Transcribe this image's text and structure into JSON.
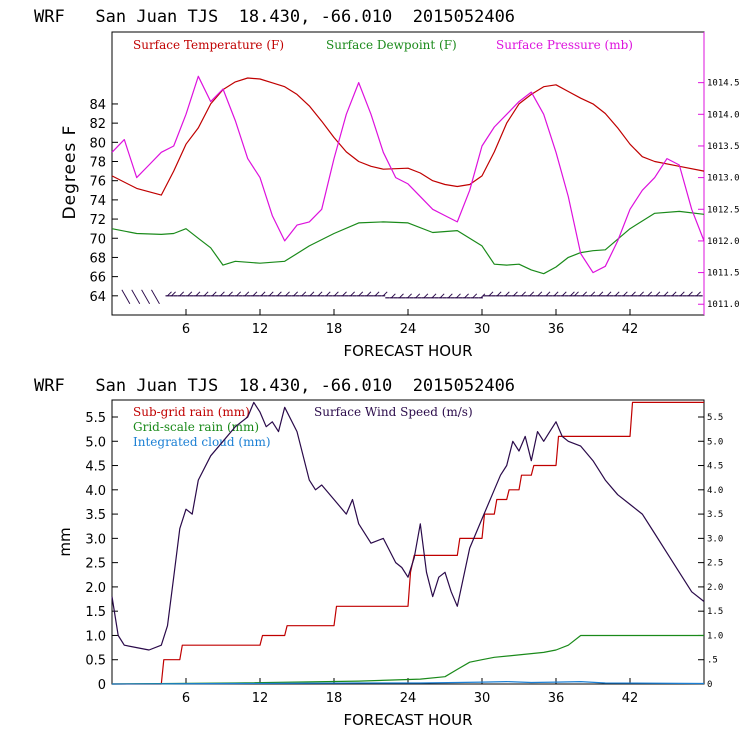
{
  "chart_data": [
    {
      "type": "line",
      "title": "WRF   San Juan TJS  18.430, -66.010  2015052406",
      "xlabel": "FORECAST HOUR",
      "ylabel": "Degrees F",
      "xlim": [
        0,
        48
      ],
      "ylim": [
        62,
        91.5
      ],
      "y2lim": [
        1010.83,
        1015.3
      ],
      "xticks": [
        6,
        12,
        18,
        24,
        30,
        36,
        42
      ],
      "yticks": [
        64,
        66,
        68,
        70,
        72,
        74,
        76,
        78,
        80,
        82,
        84
      ],
      "y2ticks": [
        "1011.0",
        "1011.5",
        "1012.0",
        "1012.5",
        "1013.0",
        "1013.5",
        "1014.0",
        "1014.5"
      ],
      "legend_position": "top",
      "series": [
        {
          "name": "Surface Temperature (F)",
          "color": "#c00000",
          "axis": "left",
          "x": [
            0,
            2,
            4,
            5,
            6,
            7,
            8,
            9,
            10,
            11,
            12,
            13,
            14,
            15,
            16,
            17,
            18,
            19,
            20,
            21,
            22,
            24,
            25,
            26,
            27,
            28,
            29,
            30,
            31,
            32,
            33,
            34,
            35,
            36,
            37,
            38,
            39,
            40,
            41,
            42,
            43,
            44,
            46,
            48
          ],
          "y": [
            76.5,
            75.2,
            74.5,
            77,
            79.8,
            81.5,
            84,
            85.5,
            86.3,
            86.7,
            86.6,
            86.2,
            85.8,
            85,
            83.8,
            82.2,
            80.5,
            79,
            78,
            77.5,
            77.2,
            77.3,
            76.8,
            76,
            75.6,
            75.4,
            75.6,
            76.5,
            79,
            82,
            84,
            85,
            85.8,
            86,
            85.3,
            84.6,
            84,
            83,
            81.5,
            79.8,
            78.5,
            78,
            77.5,
            77
          ]
        },
        {
          "name": "Surface Dewpoint (F)",
          "color": "#1a8a1a",
          "axis": "left",
          "x": [
            0,
            2,
            4,
            5,
            6,
            7,
            8,
            9,
            10,
            12,
            14,
            16,
            18,
            20,
            22,
            24,
            26,
            28,
            30,
            31,
            32,
            33,
            34,
            35,
            36,
            37,
            38,
            39,
            40,
            42,
            44,
            46,
            48
          ],
          "y": [
            71,
            70.5,
            70.4,
            70.5,
            71,
            70,
            69,
            67.2,
            67.6,
            67.4,
            67.6,
            69.2,
            70.5,
            71.6,
            71.7,
            71.6,
            70.6,
            70.8,
            69.2,
            67.3,
            67.2,
            67.3,
            66.7,
            66.3,
            67,
            68,
            68.5,
            68.7,
            68.8,
            71,
            72.6,
            72.8,
            72.5
          ]
        },
        {
          "name": "Surface Pressure (mb)",
          "color": "#dd11dd",
          "axis": "right",
          "x": [
            0,
            1,
            2,
            3,
            4,
            5,
            6,
            7,
            8,
            9,
            10,
            11,
            12,
            13,
            14,
            15,
            16,
            17,
            18,
            19,
            20,
            21,
            22,
            23,
            24,
            25,
            26,
            27,
            28,
            29,
            30,
            31,
            32,
            33,
            34,
            35,
            36,
            37,
            38,
            39,
            40,
            41,
            42,
            43,
            44,
            45,
            46,
            47,
            48
          ],
          "y": [
            1013.4,
            1013.6,
            1013.0,
            1013.2,
            1013.4,
            1013.5,
            1014.0,
            1014.6,
            1014.2,
            1014.4,
            1013.9,
            1013.3,
            1013.0,
            1012.4,
            1012.0,
            1012.25,
            1012.3,
            1012.5,
            1013.3,
            1014.0,
            1014.5,
            1014.0,
            1013.4,
            1013.0,
            1012.9,
            1012.7,
            1012.5,
            1012.4,
            1012.3,
            1012.8,
            1013.5,
            1013.8,
            1014.0,
            1014.2,
            1014.35,
            1014.0,
            1013.4,
            1012.7,
            1011.8,
            1011.5,
            1011.6,
            1012.0,
            1012.5,
            1012.8,
            1013.0,
            1013.3,
            1013.2,
            1012.5,
            1012.0
          ]
        }
      ],
      "wind_barb_row": {
        "y": 64,
        "description": "surface wind barbs along the bottom"
      }
    },
    {
      "type": "line",
      "title": "WRF   San Juan TJS  18.430, -66.010  2015052406",
      "xlabel": "FORECAST HOUR",
      "ylabel": "mm",
      "xlim": [
        0,
        48
      ],
      "ylim": [
        0,
        5.85
      ],
      "y2lim": [
        0,
        5.85
      ],
      "xticks": [
        6,
        12,
        18,
        24,
        30,
        36,
        42
      ],
      "yticks": [
        "0",
        "0.5",
        "1.0",
        "1.5",
        "2.0",
        "2.5",
        "3.0",
        "3.5",
        "4.0",
        "4.5",
        "5.0",
        "5.5"
      ],
      "y2ticks": [
        "0",
        ".5",
        "1.0",
        "1.5",
        "2.0",
        "2.5",
        "3.0",
        "3.5",
        "4.0",
        "4.5",
        "5.0",
        "5.5"
      ],
      "legend_position": "top-left",
      "series": [
        {
          "name": "Sub-grid rain (mm)",
          "color": "#c00000",
          "axis": "left",
          "x": [
            0,
            4,
            4.2,
            5.5,
            5.7,
            12,
            12.2,
            14,
            14.2,
            18,
            18.2,
            24,
            24.2,
            24.5,
            28,
            28.2,
            30,
            30.2,
            31,
            31.2,
            32,
            32.2,
            33,
            33.2,
            34,
            34.2,
            36,
            36.2,
            42,
            42.2,
            48
          ],
          "y": [
            0,
            0,
            0.5,
            0.5,
            0.8,
            0.8,
            1.0,
            1.0,
            1.2,
            1.2,
            1.6,
            1.6,
            2.3,
            2.65,
            2.65,
            3.0,
            3.0,
            3.5,
            3.5,
            3.8,
            3.8,
            4.0,
            4.0,
            4.3,
            4.3,
            4.5,
            4.5,
            5.1,
            5.1,
            5.8,
            5.8
          ]
        },
        {
          "name": "Grid-scale rain (mm)",
          "color": "#1a8a1a",
          "axis": "left",
          "x": [
            0,
            10,
            20,
            25,
            27,
            28,
            29,
            30,
            31,
            33,
            35,
            36,
            37,
            38,
            40,
            48
          ],
          "y": [
            0,
            0.02,
            0.06,
            0.1,
            0.15,
            0.3,
            0.45,
            0.5,
            0.55,
            0.6,
            0.65,
            0.7,
            0.8,
            1.0,
            1.0,
            1.0
          ]
        },
        {
          "name": "Integrated cloud (mm)",
          "color": "#1a7fd4",
          "axis": "left",
          "x": [
            0,
            10,
            20,
            25,
            28,
            30,
            32,
            34,
            36,
            38,
            40,
            48
          ],
          "y": [
            0,
            0.01,
            0.02,
            0.02,
            0.03,
            0.04,
            0.05,
            0.03,
            0.04,
            0.05,
            0.02,
            0.01
          ]
        },
        {
          "name": "Surface Wind Speed (m/s)",
          "color": "#2a0a4a",
          "axis": "left",
          "x": [
            0,
            0.5,
            1,
            2,
            3,
            4,
            4.5,
            5,
            5.5,
            6,
            6.5,
            7,
            8,
            9,
            10,
            11,
            11.5,
            12,
            12.5,
            13,
            13.5,
            14,
            15,
            16,
            16.5,
            17,
            18,
            19,
            19.5,
            20,
            21,
            22,
            23,
            23.5,
            24,
            24.5,
            25,
            25.5,
            26,
            26.5,
            27,
            27.5,
            28,
            29,
            30,
            31,
            31.5,
            32,
            32.5,
            33,
            33.5,
            34,
            34.5,
            35,
            35.5,
            36,
            36.5,
            37,
            38,
            39,
            40,
            41,
            42,
            43,
            44,
            45,
            46,
            47,
            48
          ],
          "y": [
            1.8,
            1.0,
            0.8,
            0.75,
            0.7,
            0.8,
            1.2,
            2.2,
            3.2,
            3.6,
            3.5,
            4.2,
            4.7,
            5.0,
            5.3,
            5.5,
            5.8,
            5.6,
            5.3,
            5.4,
            5.2,
            5.7,
            5.2,
            4.2,
            4.0,
            4.1,
            3.8,
            3.5,
            3.8,
            3.3,
            2.9,
            3.0,
            2.5,
            2.4,
            2.2,
            2.6,
            3.3,
            2.3,
            1.8,
            2.2,
            2.3,
            1.9,
            1.6,
            2.8,
            3.4,
            4.0,
            4.3,
            4.5,
            5.0,
            4.8,
            5.1,
            4.6,
            5.2,
            5.0,
            5.2,
            5.4,
            5.1,
            5.0,
            4.9,
            4.6,
            4.2,
            3.9,
            3.7,
            3.5,
            3.1,
            2.7,
            2.3,
            1.9,
            1.7
          ]
        }
      ]
    }
  ]
}
